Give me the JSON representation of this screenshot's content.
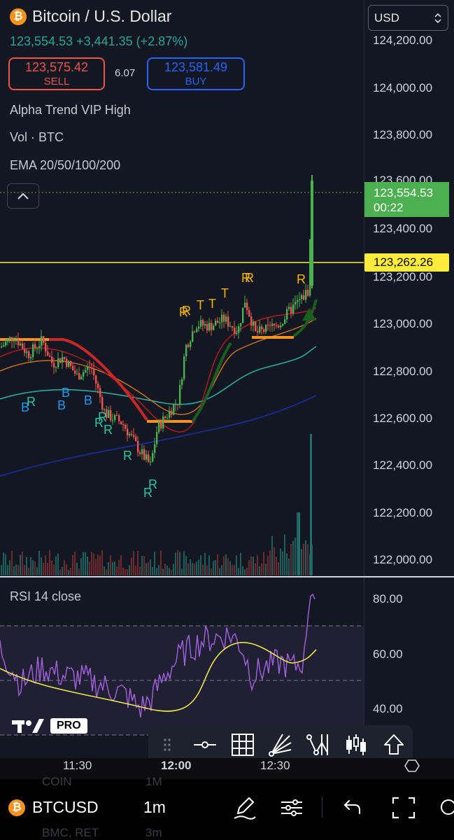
{
  "header": {
    "title": "Bitcoin / U.S. Dollar",
    "quote": "123,554.53 +3,441.35 (+2.87%)",
    "sell": {
      "price": "123,575.42",
      "label": "SELL"
    },
    "spread": "6.07",
    "buy": {
      "price": "123,581.49",
      "label": "BUY"
    },
    "currency": "USD"
  },
  "indicators": [
    "Alpha Trend VIP High",
    "Vol · BTC",
    "EMA 20/50/100/200"
  ],
  "price_axis": {
    "ticks": [
      "124,200.00",
      "124,000.00",
      "123,800.00",
      "123,600.00",
      "123,400.00",
      "123,200.00",
      "123,000.00",
      "122,800.00",
      "122,600.00",
      "122,400.00",
      "122,200.00",
      "122,000.00"
    ],
    "current_price": "123,554.53",
    "countdown": "00:22",
    "line_label": "123,262.26"
  },
  "signal_labels": {
    "buy": "B",
    "reversal": "R",
    "take": "T"
  },
  "rsi": {
    "label": "RSI 14 close",
    "ticks": [
      "80.00",
      "60.00",
      "40.00"
    ]
  },
  "branding": {
    "pro": "PRO"
  },
  "time_axis": [
    "11:30",
    "12:00",
    "12:30"
  ],
  "ghost_rows": [
    "COIN",
    "1M",
    "BMC, RET",
    "3m"
  ],
  "bottom_bar": {
    "symbol": "BTCUSD",
    "interval": "1m"
  },
  "toolbar_icons": [
    "drag-handle-icon",
    "line-tool-icon",
    "grid-icon",
    "fib-fan-icon",
    "pattern-icon",
    "candles-icon",
    "share-icon"
  ],
  "colors": {
    "up": "#4caf50",
    "down": "#ef5350",
    "rsi": "#9c5fd6",
    "rsi_ma": "#e8e84a",
    "priceline": "#ffeb3b",
    "accent_orange": "#f7931a"
  }
}
